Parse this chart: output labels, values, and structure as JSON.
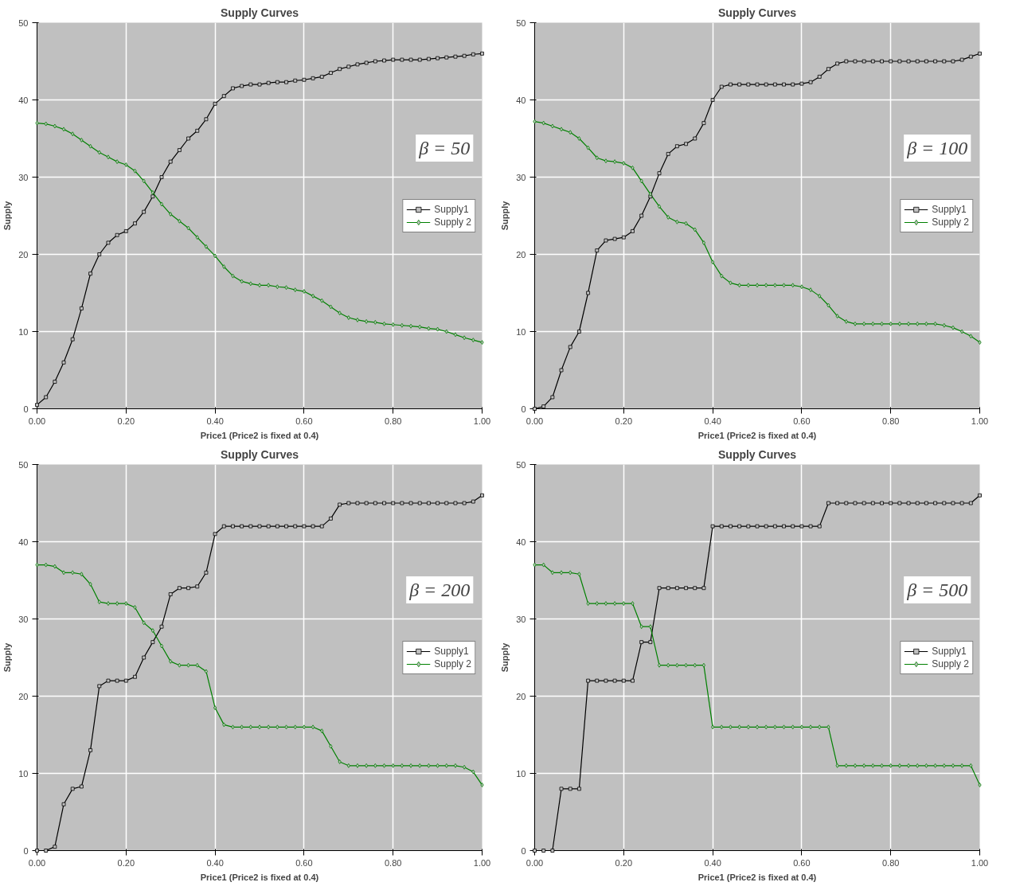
{
  "chart_data": [
    {
      "type": "line",
      "title": "Supply Curves",
      "xlabel": "Price1 (Price2 is fixed at 0.4)",
      "ylabel": "Supply",
      "annotations": [
        "β = 50"
      ],
      "legend": "right",
      "grid": true,
      "x": [
        0,
        0.02,
        0.04,
        0.06,
        0.08,
        0.1,
        0.12,
        0.14,
        0.16,
        0.18,
        0.2,
        0.22,
        0.24,
        0.26,
        0.28,
        0.3,
        0.32,
        0.34,
        0.36,
        0.38,
        0.4,
        0.42,
        0.44,
        0.46,
        0.48,
        0.5,
        0.52,
        0.54,
        0.56,
        0.58,
        0.6,
        0.62,
        0.64,
        0.66,
        0.68,
        0.7,
        0.72,
        0.74,
        0.76,
        0.78,
        0.8,
        0.82,
        0.84,
        0.86,
        0.88,
        0.9,
        0.92,
        0.94,
        0.96,
        0.98,
        1
      ],
      "xlim": [
        0,
        1
      ],
      "ylim": [
        0,
        50
      ],
      "xticks": [
        {
          "value": 0,
          "label": "0.00"
        },
        {
          "value": 0.2,
          "label": "0.20"
        },
        {
          "value": 0.4,
          "label": "0.40"
        },
        {
          "value": 0.6,
          "label": "0.60"
        },
        {
          "value": 0.8,
          "label": "0.80"
        },
        {
          "value": 1,
          "label": "1.00"
        }
      ],
      "yticks": [
        0,
        10,
        20,
        30,
        40,
        50
      ],
      "series": [
        {
          "name": "Supply1",
          "color": "#000000",
          "marker": "square",
          "values": [
            0.5,
            1.5,
            3.5,
            6,
            9,
            13,
            17.5,
            20,
            21.5,
            22.5,
            23,
            24,
            25.5,
            27.5,
            30,
            32,
            33.5,
            35,
            36,
            37.5,
            39.5,
            40.5,
            41.5,
            41.8,
            42,
            42,
            42.2,
            42.3,
            42.3,
            42.5,
            42.6,
            42.8,
            43,
            43.5,
            44,
            44.3,
            44.6,
            44.8,
            45,
            45.1,
            45.2,
            45.2,
            45.2,
            45.2,
            45.3,
            45.4,
            45.5,
            45.6,
            45.7,
            45.9,
            46
          ]
        },
        {
          "name": "Supply 2",
          "color": "#008000",
          "marker": "diamond",
          "values": [
            37,
            36.9,
            36.6,
            36.2,
            35.6,
            34.8,
            34,
            33.2,
            32.6,
            32,
            31.6,
            30.8,
            29.5,
            28,
            26.5,
            25.2,
            24.3,
            23.4,
            22.2,
            21,
            19.8,
            18.4,
            17.2,
            16.5,
            16.2,
            16,
            16,
            15.8,
            15.7,
            15.4,
            15.2,
            14.6,
            14,
            13.2,
            12.4,
            11.8,
            11.5,
            11.3,
            11.2,
            11,
            10.9,
            10.8,
            10.7,
            10.6,
            10.4,
            10.3,
            10,
            9.6,
            9.2,
            8.9,
            8.6
          ]
        }
      ]
    },
    {
      "type": "line",
      "title": "Supply Curves",
      "xlabel": "Price1 (Price2 is fixed at 0.4)",
      "ylabel": "Supply",
      "annotations": [
        "β = 100"
      ],
      "legend": "right",
      "grid": true,
      "x": [
        0,
        0.02,
        0.04,
        0.06,
        0.08,
        0.1,
        0.12,
        0.14,
        0.16,
        0.18,
        0.2,
        0.22,
        0.24,
        0.26,
        0.28,
        0.3,
        0.32,
        0.34,
        0.36,
        0.38,
        0.4,
        0.42,
        0.44,
        0.46,
        0.48,
        0.5,
        0.52,
        0.54,
        0.56,
        0.58,
        0.6,
        0.62,
        0.64,
        0.66,
        0.68,
        0.7,
        0.72,
        0.74,
        0.76,
        0.78,
        0.8,
        0.82,
        0.84,
        0.86,
        0.88,
        0.9,
        0.92,
        0.94,
        0.96,
        0.98,
        1
      ],
      "xlim": [
        0,
        1
      ],
      "ylim": [
        0,
        50
      ],
      "xticks": [
        {
          "value": 0,
          "label": "0.00"
        },
        {
          "value": 0.2,
          "label": "0.20"
        },
        {
          "value": 0.4,
          "label": "0.40"
        },
        {
          "value": 0.6,
          "label": "0.60"
        },
        {
          "value": 0.8,
          "label": "0.80"
        },
        {
          "value": 1,
          "label": "1.00"
        }
      ],
      "yticks": [
        0,
        10,
        20,
        30,
        40,
        50
      ],
      "series": [
        {
          "name": "Supply1",
          "color": "#000000",
          "marker": "square",
          "values": [
            0,
            0.3,
            1.5,
            5,
            8,
            10,
            15,
            20.5,
            21.8,
            22,
            22.2,
            23,
            25,
            27.5,
            30.5,
            33,
            34,
            34.3,
            35,
            37,
            40,
            41.7,
            42,
            42,
            42,
            42,
            42,
            42,
            42,
            42,
            42.1,
            42.3,
            43,
            44,
            44.7,
            45,
            45,
            45,
            45,
            45,
            45,
            45,
            45,
            45,
            45,
            45,
            45,
            45,
            45.2,
            45.6,
            46
          ]
        },
        {
          "name": "Supply 2",
          "color": "#008000",
          "marker": "diamond",
          "values": [
            37.2,
            37,
            36.6,
            36.2,
            35.8,
            35,
            33.8,
            32.5,
            32.1,
            32,
            31.8,
            31.2,
            29.5,
            27.8,
            26.2,
            24.8,
            24.2,
            24,
            23.2,
            21.5,
            19,
            17.2,
            16.3,
            16,
            16,
            16,
            16,
            16,
            16,
            16,
            15.8,
            15.4,
            14.6,
            13.4,
            12,
            11.3,
            11,
            11,
            11,
            11,
            11,
            11,
            11,
            11,
            11,
            11,
            10.8,
            10.5,
            10,
            9.4,
            8.6
          ]
        }
      ]
    },
    {
      "type": "line",
      "title": "Supply Curves",
      "xlabel": "Price1 (Price2 is fixed at 0.4)",
      "ylabel": "Supply",
      "annotations": [
        "β = 200"
      ],
      "legend": "right",
      "grid": true,
      "x": [
        0,
        0.02,
        0.04,
        0.06,
        0.08,
        0.1,
        0.12,
        0.14,
        0.16,
        0.18,
        0.2,
        0.22,
        0.24,
        0.26,
        0.28,
        0.3,
        0.32,
        0.34,
        0.36,
        0.38,
        0.4,
        0.42,
        0.44,
        0.46,
        0.48,
        0.5,
        0.52,
        0.54,
        0.56,
        0.58,
        0.6,
        0.62,
        0.64,
        0.66,
        0.68,
        0.7,
        0.72,
        0.74,
        0.76,
        0.78,
        0.8,
        0.82,
        0.84,
        0.86,
        0.88,
        0.9,
        0.92,
        0.94,
        0.96,
        0.98,
        1
      ],
      "xlim": [
        0,
        1
      ],
      "ylim": [
        0,
        50
      ],
      "xticks": [
        {
          "value": 0,
          "label": "0.00"
        },
        {
          "value": 0.2,
          "label": "0.20"
        },
        {
          "value": 0.4,
          "label": "0.40"
        },
        {
          "value": 0.6,
          "label": "0.60"
        },
        {
          "value": 0.8,
          "label": "0.80"
        },
        {
          "value": 1,
          "label": "1.00"
        }
      ],
      "yticks": [
        0,
        10,
        20,
        30,
        40,
        50
      ],
      "series": [
        {
          "name": "Supply1",
          "color": "#000000",
          "marker": "square",
          "values": [
            0,
            0,
            0.5,
            6,
            8,
            8.3,
            13,
            21.3,
            22,
            22,
            22,
            22.5,
            25,
            27,
            29,
            33.2,
            34,
            34,
            34.2,
            36,
            41,
            42,
            42,
            42,
            42,
            42,
            42,
            42,
            42,
            42,
            42,
            42,
            42,
            43,
            44.8,
            45,
            45,
            45,
            45,
            45,
            45,
            45,
            45,
            45,
            45,
            45,
            45,
            45,
            45,
            45.2,
            46
          ]
        },
        {
          "name": "Supply 2",
          "color": "#008000",
          "marker": "diamond",
          "values": [
            37,
            37,
            36.8,
            36,
            36,
            35.8,
            34.5,
            32.2,
            32,
            32,
            32,
            31.5,
            29.5,
            28.5,
            26.5,
            24.5,
            24,
            24,
            24,
            23.2,
            18.5,
            16.3,
            16,
            16,
            16,
            16,
            16,
            16,
            16,
            16,
            16,
            16,
            15.5,
            13.5,
            11.5,
            11,
            11,
            11,
            11,
            11,
            11,
            11,
            11,
            11,
            11,
            11,
            11,
            11,
            10.8,
            10.2,
            8.5
          ]
        }
      ]
    },
    {
      "type": "line",
      "title": "Supply Curves",
      "xlabel": "Price1 (Price2 is fixed at 0.4)",
      "ylabel": "Supply",
      "annotations": [
        "β = 500"
      ],
      "legend": "right",
      "grid": true,
      "x": [
        0,
        0.02,
        0.04,
        0.06,
        0.08,
        0.1,
        0.12,
        0.14,
        0.16,
        0.18,
        0.2,
        0.22,
        0.24,
        0.26,
        0.28,
        0.3,
        0.32,
        0.34,
        0.36,
        0.38,
        0.4,
        0.42,
        0.44,
        0.46,
        0.48,
        0.5,
        0.52,
        0.54,
        0.56,
        0.58,
        0.6,
        0.62,
        0.64,
        0.66,
        0.68,
        0.7,
        0.72,
        0.74,
        0.76,
        0.78,
        0.8,
        0.82,
        0.84,
        0.86,
        0.88,
        0.9,
        0.92,
        0.94,
        0.96,
        0.98,
        1
      ],
      "xlim": [
        0,
        1
      ],
      "ylim": [
        0,
        50
      ],
      "xticks": [
        {
          "value": 0,
          "label": "0.00"
        },
        {
          "value": 0.2,
          "label": "0.20"
        },
        {
          "value": 0.4,
          "label": "0.40"
        },
        {
          "value": 0.6,
          "label": "0.60"
        },
        {
          "value": 0.8,
          "label": "0.80"
        },
        {
          "value": 1,
          "label": "1.00"
        }
      ],
      "yticks": [
        0,
        10,
        20,
        30,
        40,
        50
      ],
      "series": [
        {
          "name": "Supply1",
          "color": "#000000",
          "marker": "square",
          "values": [
            0,
            0,
            0,
            8,
            8,
            8,
            22,
            22,
            22,
            22,
            22,
            22,
            27,
            27,
            34,
            34,
            34,
            34,
            34,
            34,
            42,
            42,
            42,
            42,
            42,
            42,
            42,
            42,
            42,
            42,
            42,
            42,
            42,
            45,
            45,
            45,
            45,
            45,
            45,
            45,
            45,
            45,
            45,
            45,
            45,
            45,
            45,
            45,
            45,
            45,
            46
          ]
        },
        {
          "name": "Supply 2",
          "color": "#008000",
          "marker": "diamond",
          "values": [
            37,
            37,
            36,
            36,
            36,
            35.8,
            32,
            32,
            32,
            32,
            32,
            32,
            29,
            29,
            24,
            24,
            24,
            24,
            24,
            24,
            16,
            16,
            16,
            16,
            16,
            16,
            16,
            16,
            16,
            16,
            16,
            16,
            16,
            16,
            11,
            11,
            11,
            11,
            11,
            11,
            11,
            11,
            11,
            11,
            11,
            11,
            11,
            11,
            11,
            11,
            8.5
          ]
        }
      ]
    }
  ]
}
